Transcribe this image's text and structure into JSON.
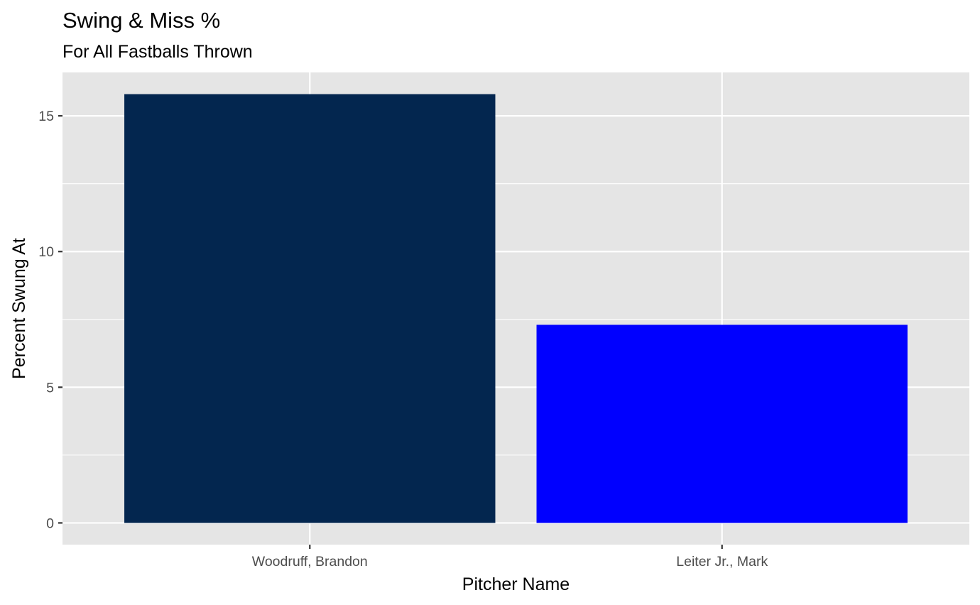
{
  "chart_data": {
    "type": "bar",
    "title": "Swing & Miss %",
    "subtitle": "For All Fastballs Thrown",
    "xlabel": "Pitcher Name",
    "ylabel": "Percent Swung At",
    "categories": [
      "Woodruff, Brandon",
      "Leiter Jr., Mark"
    ],
    "values": [
      15.8,
      7.3
    ],
    "bar_colors": [
      "#03264F",
      "#0000FF"
    ],
    "ylim": [
      -0.8,
      16.6
    ],
    "yticks": [
      0,
      5,
      10,
      15
    ],
    "ytick_labels": [
      "0",
      "5",
      "10",
      "15"
    ],
    "grid": true,
    "panel_background": "#E5E5E5",
    "grid_color": "#FFFFFF",
    "legend": "none"
  }
}
